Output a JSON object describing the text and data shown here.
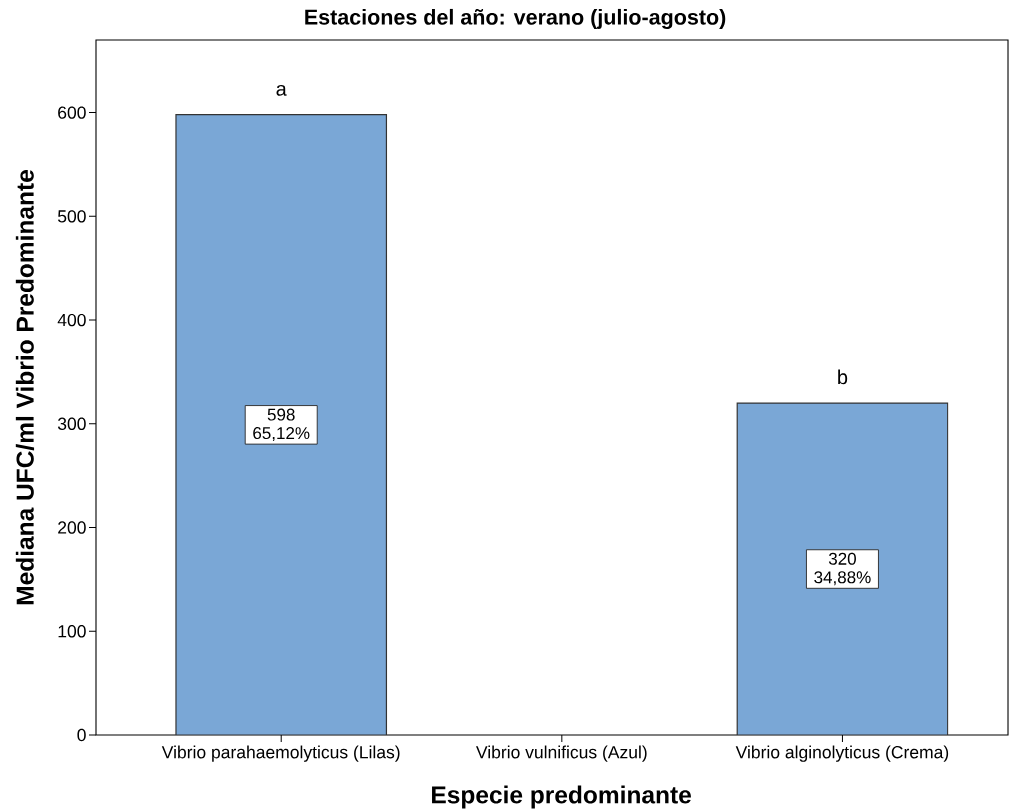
{
  "chart_data": {
    "type": "bar",
    "title": "Estaciones del año: verano (julio-agosto)",
    "xlabel": "Especie predominante",
    "ylabel": "Mediana UFC/ml Vibrio Predominante",
    "categories": [
      "Vibrio parahaemolyticus (Lilas)",
      "Vibrio vulnificus (Azul)",
      "Vibrio alginolyticus (Crema)"
    ],
    "values": [
      598,
      null,
      320
    ],
    "color": "#7aa7d6",
    "value_labels": [
      "598 65,12%",
      null,
      "320 34,88%"
    ],
    "ylim": [
      0,
      670
    ],
    "yticks": [
      0,
      100,
      200,
      300,
      400,
      500,
      600
    ],
    "grid": false,
    "annotations": [
      {
        "text": "a",
        "x": "Vibrio parahaemolyticus (Lilas)",
        "y": 598
      },
      {
        "text": "b",
        "x": "Vibrio alginolyticus (Crema)",
        "y": 320
      }
    ]
  }
}
